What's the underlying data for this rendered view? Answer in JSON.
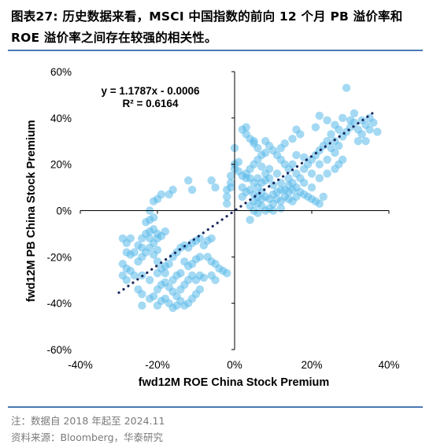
{
  "title": "图表27:  历史数据来看，MSCI 中国指数的前向 12 个月 PB 溢价率和 ROE 溢价率之间存在较强的相关性。",
  "notes": [
    "注：数据自 2018 年起至 2024.11",
    "资料来源：Bloomberg，华泰研究"
  ],
  "colors": {
    "points": "#5ab9ea",
    "trend": "#1a2a5e",
    "rule": "#4a79b5"
  },
  "chart_data": {
    "type": "scatter",
    "xlabel": "fwd12M ROE China Stock Premium",
    "ylabel": "fwd12M PB China Stock Premium",
    "xlim": [
      -0.4,
      0.4
    ],
    "ylim": [
      -0.6,
      0.6
    ],
    "xticks": [
      "-40%",
      "-20%",
      "0%",
      "20%",
      "40%"
    ],
    "yticks": [
      "60%",
      "40%",
      "20%",
      "0%",
      "-20%",
      "-40%",
      "-60%"
    ],
    "xtick_values": [
      -0.4,
      -0.2,
      0,
      0.2,
      0.4
    ],
    "ytick_values": [
      0.6,
      0.4,
      0.2,
      0,
      -0.2,
      -0.4,
      -0.6
    ],
    "equation": "y = 1.1787x - 0.0006",
    "r_squared": "R² = 0.6164",
    "trendline": {
      "slope": 1.1787,
      "intercept": -0.0006,
      "x_range": [
        -0.3,
        0.36
      ]
    },
    "points": [
      [
        -0.29,
        -0.12
      ],
      [
        -0.28,
        -0.14
      ],
      [
        -0.27,
        -0.12
      ],
      [
        -0.28,
        -0.18
      ],
      [
        -0.27,
        -0.19
      ],
      [
        -0.26,
        -0.18
      ],
      [
        -0.29,
        -0.23
      ],
      [
        -0.28,
        -0.25
      ],
      [
        -0.27,
        -0.26
      ],
      [
        -0.29,
        -0.28
      ],
      [
        -0.28,
        -0.3
      ],
      [
        -0.26,
        -0.28
      ],
      [
        -0.25,
        -0.22
      ],
      [
        -0.24,
        -0.2
      ],
      [
        -0.23,
        -0.18
      ],
      [
        -0.22,
        -0.16
      ],
      [
        -0.21,
        -0.14
      ],
      [
        -0.2,
        -0.12
      ],
      [
        -0.23,
        -0.1
      ],
      [
        -0.22,
        -0.09
      ],
      [
        -0.21,
        -0.08
      ],
      [
        -0.2,
        -0.1
      ],
      [
        -0.19,
        -0.11
      ],
      [
        -0.18,
        -0.09
      ],
      [
        -0.24,
        -0.12
      ],
      [
        -0.25,
        -0.15
      ],
      [
        -0.24,
        -0.16
      ],
      [
        -0.22,
        -0.12
      ],
      [
        -0.21,
        -0.19
      ],
      [
        -0.2,
        -0.17
      ],
      [
        -0.23,
        -0.05
      ],
      [
        -0.22,
        -0.04
      ],
      [
        -0.21,
        -0.03
      ],
      [
        -0.22,
        0.0
      ],
      [
        -0.21,
        0.04
      ],
      [
        -0.2,
        0.05
      ],
      [
        -0.19,
        0.07
      ],
      [
        -0.17,
        0.07
      ],
      [
        -0.16,
        0.09
      ],
      [
        -0.12,
        0.13
      ],
      [
        -0.11,
        0.09
      ],
      [
        -0.06,
        0.13
      ],
      [
        -0.05,
        0.1
      ],
      [
        -0.24,
        -0.28
      ],
      [
        -0.22,
        -0.3
      ],
      [
        -0.2,
        -0.27
      ],
      [
        -0.19,
        -0.25
      ],
      [
        -0.18,
        -0.27
      ],
      [
        -0.25,
        -0.34
      ],
      [
        -0.24,
        -0.36
      ],
      [
        -0.22,
        -0.38
      ],
      [
        -0.21,
        -0.37
      ],
      [
        -0.2,
        -0.34
      ],
      [
        -0.19,
        -0.32
      ],
      [
        -0.18,
        -0.31
      ],
      [
        -0.17,
        -0.33
      ],
      [
        -0.16,
        -0.35
      ],
      [
        -0.15,
        -0.37
      ],
      [
        -0.14,
        -0.39
      ],
      [
        -0.13,
        -0.41
      ],
      [
        -0.12,
        -0.4
      ],
      [
        -0.11,
        -0.38
      ],
      [
        -0.1,
        -0.36
      ],
      [
        -0.09,
        -0.34
      ],
      [
        -0.18,
        -0.38
      ],
      [
        -0.17,
        -0.4
      ],
      [
        -0.16,
        -0.42
      ],
      [
        -0.15,
        -0.41
      ],
      [
        -0.14,
        -0.34
      ],
      [
        -0.13,
        -0.32
      ],
      [
        -0.12,
        -0.3
      ],
      [
        -0.11,
        -0.28
      ],
      [
        -0.1,
        -0.3
      ],
      [
        -0.09,
        -0.28
      ],
      [
        -0.08,
        -0.29
      ],
      [
        -0.14,
        -0.27
      ],
      [
        -0.15,
        -0.28
      ],
      [
        -0.16,
        -0.3
      ],
      [
        -0.2,
        -0.41
      ],
      [
        -0.19,
        -0.39
      ],
      [
        -0.24,
        -0.41
      ],
      [
        -0.16,
        -0.2
      ],
      [
        -0.15,
        -0.18
      ],
      [
        -0.14,
        -0.16
      ],
      [
        -0.13,
        -0.15
      ],
      [
        -0.12,
        -0.16
      ],
      [
        -0.11,
        -0.14
      ],
      [
        -0.1,
        -0.13
      ],
      [
        -0.09,
        -0.12
      ],
      [
        -0.08,
        -0.15
      ],
      [
        -0.07,
        -0.13
      ],
      [
        -0.06,
        -0.12
      ],
      [
        -0.07,
        -0.2
      ],
      [
        -0.06,
        -0.22
      ],
      [
        -0.05,
        -0.23
      ],
      [
        -0.04,
        -0.25
      ],
      [
        -0.03,
        -0.26
      ],
      [
        -0.02,
        -0.27
      ],
      [
        -0.06,
        -0.28
      ],
      [
        -0.05,
        -0.3
      ],
      [
        -0.13,
        -0.22
      ],
      [
        -0.12,
        -0.24
      ],
      [
        -0.11,
        -0.23
      ],
      [
        -0.1,
        -0.21
      ],
      [
        -0.09,
        -0.2
      ],
      [
        -0.2,
        -0.22
      ],
      [
        -0.18,
        -0.24
      ],
      [
        -0.17,
        -0.23
      ],
      [
        0.0,
        0.27
      ],
      [
        0.0,
        0.2
      ],
      [
        0.0,
        0.18
      ],
      [
        -0.01,
        0.15
      ],
      [
        -0.01,
        0.12
      ],
      [
        -0.01,
        0.1
      ],
      [
        -0.02,
        0.09
      ],
      [
        -0.02,
        0.06
      ],
      [
        -0.02,
        0.03
      ],
      [
        0.01,
        0.21
      ],
      [
        0.01,
        0.17
      ],
      [
        0.02,
        0.15
      ],
      [
        0.03,
        0.14
      ],
      [
        0.02,
        0.1
      ],
      [
        0.03,
        0.08
      ],
      [
        0.04,
        0.09
      ],
      [
        0.05,
        0.07
      ],
      [
        0.06,
        0.06
      ],
      [
        0.04,
        0.02
      ],
      [
        0.05,
        0.04
      ],
      [
        0.07,
        0.05
      ],
      [
        0.07,
        0.02
      ],
      [
        0.06,
        -0.01
      ],
      [
        0.08,
        0.0
      ],
      [
        0.09,
        0.01
      ],
      [
        0.1,
        0.03
      ],
      [
        0.11,
        0.05
      ],
      [
        0.12,
        0.04
      ],
      [
        0.13,
        0.06
      ],
      [
        0.14,
        0.05
      ],
      [
        0.15,
        0.04
      ],
      [
        0.16,
        0.06
      ],
      [
        0.17,
        0.08
      ],
      [
        0.18,
        0.07
      ],
      [
        0.19,
        0.06
      ],
      [
        0.2,
        0.05
      ],
      [
        0.21,
        0.04
      ],
      [
        0.22,
        0.03
      ],
      [
        0.23,
        0.06
      ],
      [
        0.2,
        0.1
      ],
      [
        0.18,
        0.12
      ],
      [
        0.16,
        0.1
      ],
      [
        0.17,
        0.14
      ],
      [
        0.15,
        0.09
      ],
      [
        0.14,
        0.11
      ],
      [
        0.12,
        0.09
      ],
      [
        0.11,
        0.08
      ],
      [
        0.1,
        0.07
      ],
      [
        0.09,
        0.05
      ],
      [
        0.08,
        0.06
      ],
      [
        0.07,
        0.08
      ],
      [
        0.06,
        0.1
      ],
      [
        0.05,
        0.12
      ],
      [
        0.04,
        0.14
      ],
      [
        0.03,
        0.16
      ],
      [
        0.04,
        0.18
      ],
      [
        0.05,
        0.2
      ],
      [
        0.06,
        0.22
      ],
      [
        0.07,
        0.24
      ],
      [
        0.08,
        0.25
      ],
      [
        0.06,
        0.27
      ],
      [
        0.05,
        0.29
      ],
      [
        0.04,
        0.31
      ],
      [
        0.03,
        0.33
      ],
      [
        0.02,
        0.35
      ],
      [
        0.03,
        0.36
      ],
      [
        0.05,
        0.3
      ],
      [
        0.08,
        0.3
      ],
      [
        0.09,
        0.28
      ],
      [
        0.1,
        0.26
      ],
      [
        0.11,
        0.24
      ],
      [
        0.12,
        0.22
      ],
      [
        0.13,
        0.2
      ],
      [
        0.14,
        0.18
      ],
      [
        0.11,
        0.16
      ],
      [
        0.09,
        0.18
      ],
      [
        0.07,
        0.19
      ],
      [
        0.06,
        0.14
      ],
      [
        0.08,
        0.13
      ],
      [
        0.12,
        0.12
      ],
      [
        0.14,
        0.14
      ],
      [
        0.16,
        0.16
      ],
      [
        0.18,
        0.18
      ],
      [
        0.19,
        0.2
      ],
      [
        0.2,
        0.22
      ],
      [
        0.21,
        0.24
      ],
      [
        0.22,
        0.26
      ],
      [
        0.23,
        0.28
      ],
      [
        0.24,
        0.3
      ],
      [
        0.25,
        0.27
      ],
      [
        0.26,
        0.25
      ],
      [
        0.24,
        0.22
      ],
      [
        0.22,
        0.2
      ],
      [
        0.2,
        0.16
      ],
      [
        0.22,
        0.14
      ],
      [
        0.24,
        0.16
      ],
      [
        0.26,
        0.18
      ],
      [
        0.27,
        0.2
      ],
      [
        0.28,
        0.22
      ],
      [
        0.27,
        0.28
      ],
      [
        0.26,
        0.3
      ],
      [
        0.28,
        0.32
      ],
      [
        0.29,
        0.34
      ],
      [
        0.3,
        0.36
      ],
      [
        0.31,
        0.38
      ],
      [
        0.32,
        0.35
      ],
      [
        0.33,
        0.33
      ],
      [
        0.34,
        0.37
      ],
      [
        0.35,
        0.4
      ],
      [
        0.36,
        0.38
      ],
      [
        0.33,
        0.39
      ],
      [
        0.31,
        0.42
      ],
      [
        0.28,
        0.4
      ],
      [
        0.26,
        0.37
      ],
      [
        0.24,
        0.39
      ],
      [
        0.22,
        0.41
      ],
      [
        0.21,
        0.36
      ],
      [
        0.29,
        0.53
      ],
      [
        0.32,
        0.3
      ],
      [
        0.35,
        0.35
      ],
      [
        0.37,
        0.34
      ],
      [
        0.34,
        0.3
      ],
      [
        0.3,
        0.39
      ],
      [
        0.27,
        0.35
      ],
      [
        0.25,
        0.33
      ],
      [
        0.16,
        0.35
      ],
      [
        0.17,
        0.33
      ],
      [
        0.15,
        0.31
      ],
      [
        0.13,
        0.29
      ],
      [
        0.12,
        0.27
      ],
      [
        0.16,
        0.24
      ],
      [
        0.15,
        0.2
      ],
      [
        0.18,
        0.23
      ],
      [
        0.1,
        0.11
      ],
      [
        0.09,
        0.14
      ],
      [
        0.08,
        0.16
      ],
      [
        0.07,
        0.12
      ],
      [
        0.05,
        0.0
      ],
      [
        0.06,
        0.03
      ],
      [
        0.04,
        -0.04
      ],
      [
        0.02,
        0.06
      ],
      [
        0.1,
        0.0
      ],
      [
        0.12,
        0.01
      ],
      [
        0.13,
        0.09
      ],
      [
        0.14,
        0.08
      ],
      [
        0.15,
        0.12
      ]
    ]
  }
}
